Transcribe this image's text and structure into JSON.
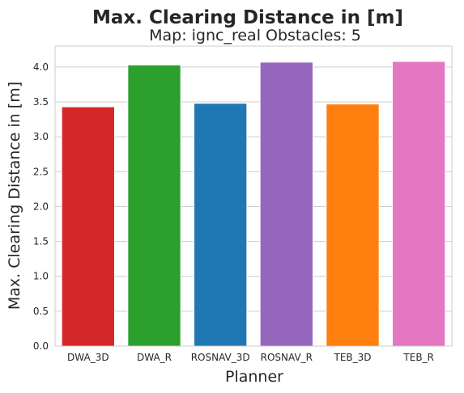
{
  "chart_data": {
    "type": "bar",
    "title": "Max. Clearing Distance in [m]",
    "subtitle": "Map: ignc_real Obstacles: 5",
    "xlabel": "Planner",
    "ylabel": "Max. Clearing Distance in [m]",
    "categories": [
      "DWA_3D",
      "DWA_R",
      "ROSNAV_3D",
      "ROSNAV_R",
      "TEB_3D",
      "TEB_R"
    ],
    "values": [
      3.43,
      4.03,
      3.48,
      4.07,
      3.47,
      4.08
    ],
    "colors": [
      "#d62728",
      "#2ca02c",
      "#1f77b4",
      "#9467bd",
      "#ff7f0e",
      "#e377c2"
    ],
    "ylim": [
      0,
      4.3
    ],
    "yticks": [
      "0.0",
      "0.5",
      "1.0",
      "1.5",
      "2.0",
      "2.5",
      "3.0",
      "3.5",
      "4.0"
    ],
    "grid": true,
    "legend": "none"
  }
}
